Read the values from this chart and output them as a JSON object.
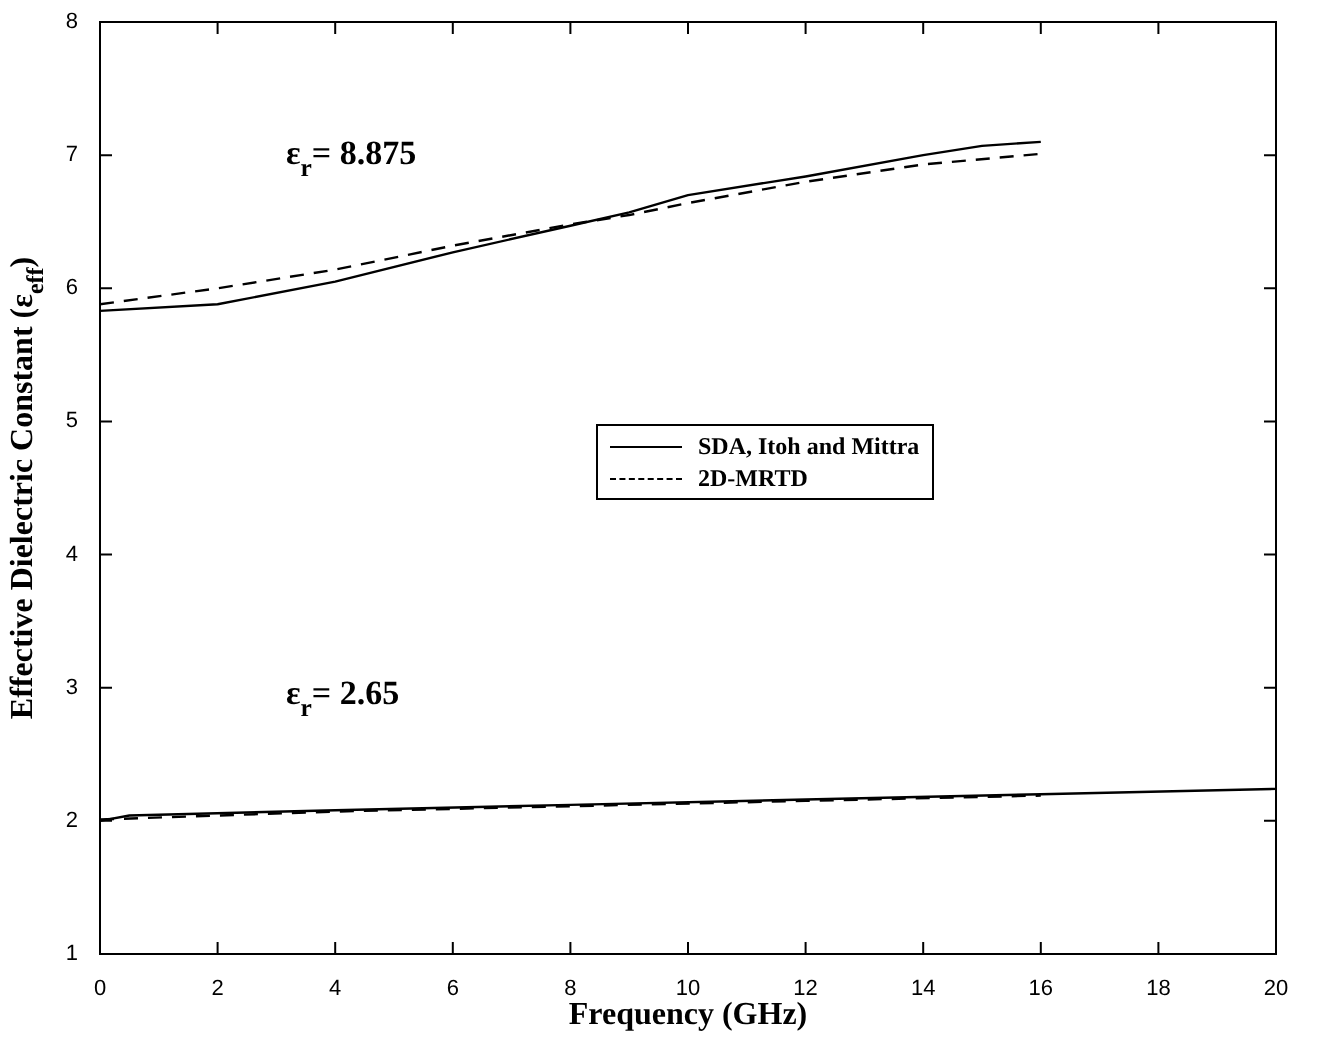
{
  "chart_data": {
    "type": "line",
    "xlabel": "Frequency (GHz)",
    "ylabel": "Effective Dielectric Constant (ε$_{eff}$)",
    "xlim": [
      0,
      20
    ],
    "xticks": [
      0,
      2,
      4,
      6,
      8,
      10,
      12,
      14,
      16,
      18,
      20
    ],
    "ylim": [
      1,
      8
    ],
    "yticks": [
      1,
      2,
      3,
      4,
      5,
      6,
      7,
      8
    ],
    "grid": false,
    "legend": "center",
    "marker": "none",
    "series": [
      {
        "name": "SDA, Itoh and Mittra",
        "color": "#000000",
        "line_style": "solid",
        "x": [
          0,
          2,
          4,
          6,
          8,
          9,
          10,
          12,
          14,
          15,
          16
        ],
        "values": [
          5.83,
          5.88,
          6.05,
          6.27,
          6.47,
          6.57,
          6.7,
          6.84,
          7.0,
          7.07,
          7.1
        ]
      },
      {
        "name": "2D-MRTD",
        "color": "#000000",
        "line_style": "dashed",
        "x": [
          0,
          2,
          4,
          6,
          8,
          9,
          10,
          12,
          14,
          16
        ],
        "values": [
          5.88,
          6.0,
          6.14,
          6.32,
          6.48,
          6.55,
          6.64,
          6.8,
          6.93,
          7.01
        ]
      },
      {
        "color": "#000000",
        "line_style": "solid",
        "x": [
          0,
          0.5,
          4,
          8,
          12,
          16,
          20
        ],
        "values": [
          2.0,
          2.04,
          2.08,
          2.12,
          2.16,
          2.2,
          2.24
        ]
      },
      {
        "color": "#000000",
        "line_style": "dashed",
        "x": [
          0,
          2,
          4,
          8,
          12,
          16
        ],
        "values": [
          2.01,
          2.04,
          2.07,
          2.11,
          2.15,
          2.19
        ]
      }
    ],
    "annotations": [
      "ε$_{r}$= 8.875",
      "ε$_{r}$= 2.65"
    ]
  }
}
